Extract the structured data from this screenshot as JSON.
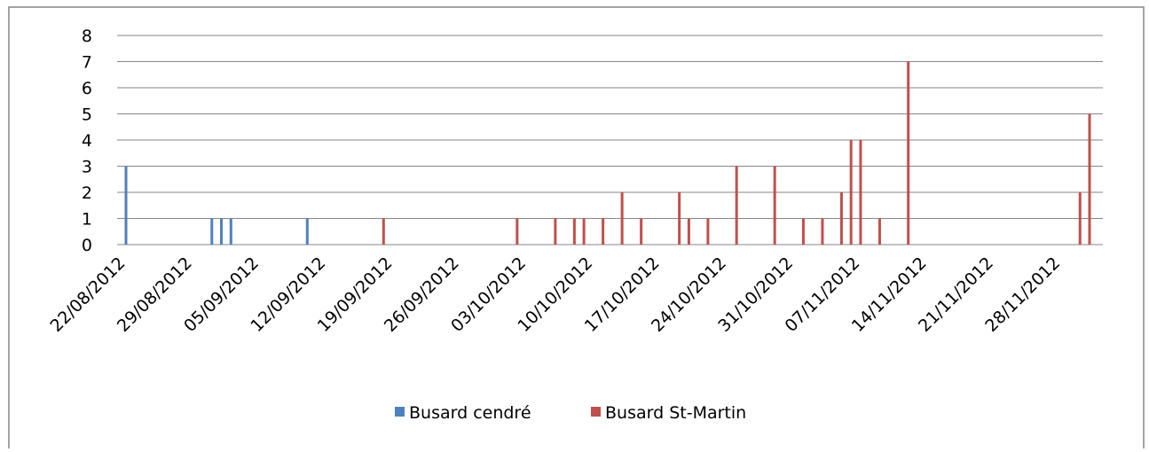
{
  "chart_data": {
    "type": "bar",
    "xlim": [
      "22/08/2012",
      "01/12/2012"
    ],
    "xticks": [
      "22/08/2012",
      "29/08/2012",
      "05/09/2012",
      "12/09/2012",
      "19/09/2012",
      "26/09/2012",
      "03/10/2012",
      "10/10/2012",
      "17/10/2012",
      "24/10/2012",
      "31/10/2012",
      "07/11/2012",
      "14/11/2012",
      "21/11/2012",
      "28/11/2012"
    ],
    "ylim": [
      0,
      8
    ],
    "yticks": [
      0,
      1,
      2,
      3,
      4,
      5,
      6,
      7,
      8
    ],
    "grid": true,
    "legend": "bottom",
    "series": [
      {
        "name": "Busard cendré",
        "color": "#4f81bd",
        "x": [
          "22/08/2012",
          "31/08/2012",
          "01/09/2012",
          "02/09/2012",
          "10/09/2012"
        ],
        "values": [
          3,
          1,
          1,
          1,
          1
        ]
      },
      {
        "name": "Busard St-Martin",
        "color": "#c0504d",
        "x": [
          "18/09/2012",
          "02/10/2012",
          "06/10/2012",
          "08/10/2012",
          "09/10/2012",
          "11/10/2012",
          "13/10/2012",
          "15/10/2012",
          "19/10/2012",
          "20/10/2012",
          "22/10/2012",
          "25/10/2012",
          "29/10/2012",
          "01/11/2012",
          "03/11/2012",
          "05/11/2012",
          "06/11/2012",
          "07/11/2012",
          "09/11/2012",
          "12/11/2012",
          "30/11/2012",
          "01/12/2012"
        ],
        "values": [
          1,
          1,
          1,
          1,
          1,
          1,
          2,
          1,
          2,
          1,
          1,
          3,
          3,
          1,
          1,
          2,
          4,
          4,
          1,
          7,
          2,
          5
        ]
      }
    ]
  }
}
